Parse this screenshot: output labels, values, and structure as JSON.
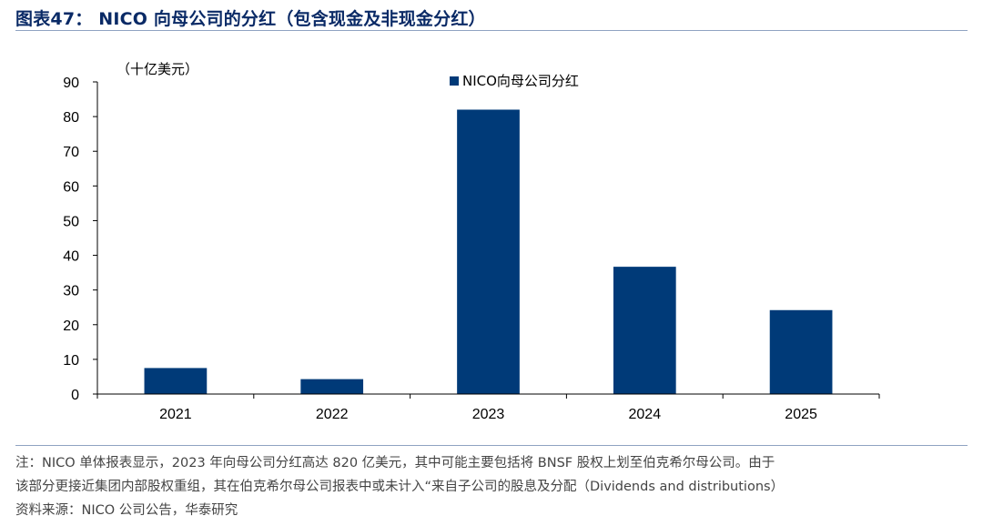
{
  "figure": {
    "title": "图表47： NICO 向母公司的分红（包含现金及非现金分红）"
  },
  "chart_data": {
    "type": "bar",
    "unit_label": "（十亿美元）",
    "categories": [
      "2021",
      "2022",
      "2023",
      "2024",
      "2025"
    ],
    "series": [
      {
        "name": "NICO向母公司分红",
        "values": [
          7.5,
          4.3,
          82.0,
          36.7,
          24.2
        ]
      }
    ],
    "ylim": [
      0,
      90
    ],
    "yticks": [
      0,
      10,
      20,
      30,
      40,
      50,
      60,
      70,
      80,
      90
    ],
    "legend_position": "top-center",
    "grid": false,
    "colors": {
      "bar": "#003a78",
      "axis": "#000000"
    }
  },
  "notes": {
    "line1": "注：NICO 单体报表显示，2023 年向母公司分红高达 820 亿美元，其中可能主要包括将 BNSF 股权上划至伯克希尔母公司。由于",
    "line2": "该部分更接近集团内部股权重组，其在伯克希尔母公司报表中或未计入“来自子公司的股息及分配（Dividends and distributions）",
    "source": "资料来源：NICO 公司公告，华泰研究"
  }
}
